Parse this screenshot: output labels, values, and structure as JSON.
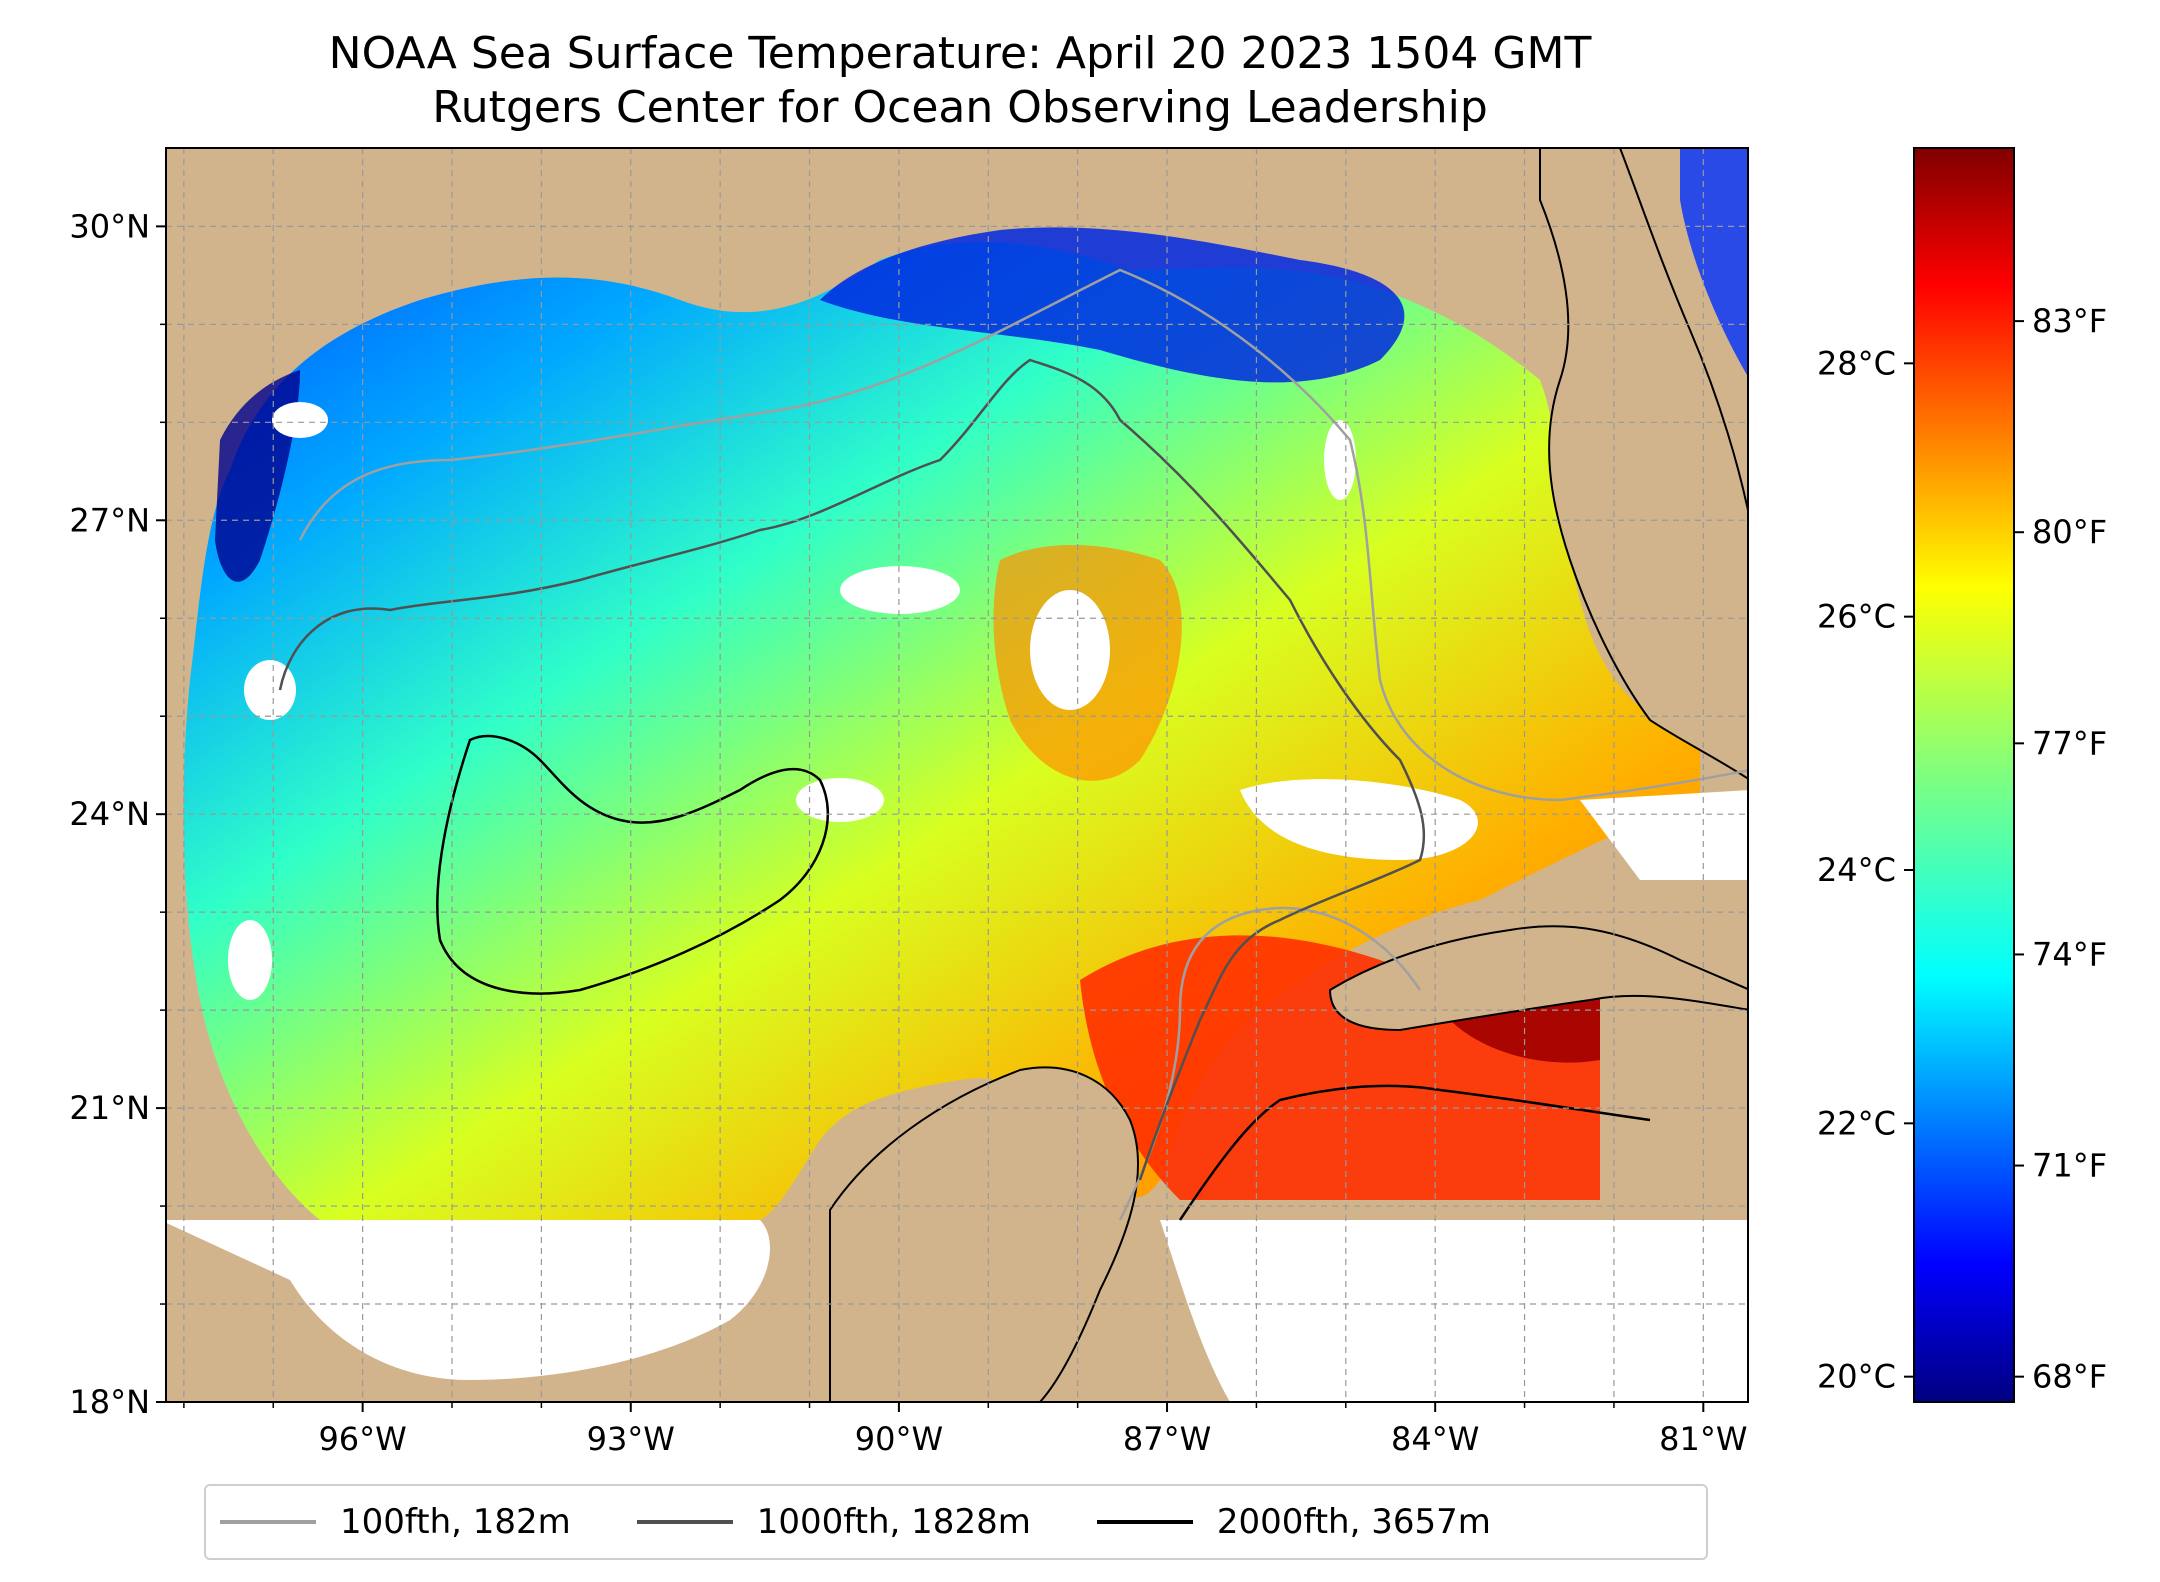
{
  "title": {
    "line1": "NOAA Sea Surface Temperature: April 20 2023 1504 GMT",
    "line2": "Rutgers Center for Ocean Observing Leadership"
  },
  "map": {
    "lat_range": [
      18,
      30.8
    ],
    "lon_range": [
      -98.2,
      -80.5
    ],
    "lat_ticks": [
      "30°N",
      "27°N",
      "24°N",
      "21°N",
      "18°N"
    ],
    "lon_ticks": [
      "96°W",
      "93°W",
      "90°W",
      "87°W",
      "84°W",
      "81°W"
    ],
    "land_color": "#d2b48c",
    "no_data_color": "#ffffff",
    "gridlines": true
  },
  "legend": {
    "items": [
      {
        "label": "100fth, 182m",
        "color": "#a0a0a0"
      },
      {
        "label": "1000fth, 1828m",
        "color": "#505050"
      },
      {
        "label": "2000fth, 3657m",
        "color": "#000000"
      }
    ]
  },
  "colorbar": {
    "colormap": "jet",
    "range_c": [
      19.8,
      29.7
    ],
    "celsius_ticks": [
      "28°C",
      "26°C",
      "24°C",
      "22°C",
      "20°C"
    ],
    "fahrenheit_ticks": [
      "83°F",
      "80°F",
      "77°F",
      "74°F",
      "71°F",
      "68°F"
    ]
  }
}
